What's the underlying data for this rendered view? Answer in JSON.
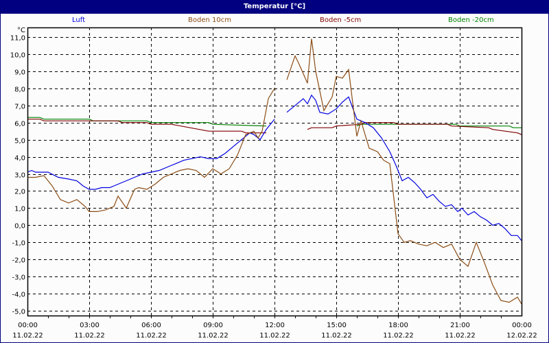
{
  "title": "Temperatur [°C]",
  "colors": {
    "titlebar": "#000080",
    "Luft": "#0000e0",
    "Boden 10cm": "#8b4c14",
    "Boden -5cm": "#800000",
    "Boden -20cm": "#008000"
  },
  "chart_data": {
    "type": "line",
    "title": "Temperatur [°C]",
    "ylabel": "°C",
    "xlabel": "",
    "ylim": [
      -5.0,
      11.0
    ],
    "grid": true,
    "legend_position": "top",
    "yticks": [
      "11,0",
      "10,0",
      "9,0",
      "8,0",
      "7,0",
      "6,0",
      "5,0",
      "4,0",
      "3,0",
      "2,0",
      "1,0",
      "0,0",
      "-1,0",
      "-2,0",
      "-3,0",
      "-4,0",
      "-5,0"
    ],
    "xticks": [
      {
        "time": "00:00",
        "date": "11.02.22"
      },
      {
        "time": "03:00",
        "date": "11.02.22"
      },
      {
        "time": "06:00",
        "date": "11.02.22"
      },
      {
        "time": "09:00",
        "date": "11.02.22"
      },
      {
        "time": "12:00",
        "date": "11.02.22"
      },
      {
        "time": "15:00",
        "date": "11.02.22"
      },
      {
        "time": "18:00",
        "date": "11.02.22"
      },
      {
        "time": "21:00",
        "date": "11.02.22"
      },
      {
        "time": "00:00",
        "date": "12.02.22"
      }
    ],
    "series": [
      {
        "name": "Luft",
        "x_hours": [
          0,
          0.2,
          0.4,
          0.6,
          1.0,
          1.5,
          2.0,
          2.4,
          2.7,
          3.0,
          3.3,
          3.6,
          4.0,
          4.4,
          4.8,
          5.2,
          5.6,
          6.0,
          6.4,
          6.8,
          7.2,
          7.6,
          8.0,
          8.4,
          8.8,
          9.2,
          9.6,
          10.0,
          10.4,
          10.8,
          11.0,
          11.3,
          11.6,
          12.0,
          12.2,
          12.6,
          13.0,
          13.4,
          13.6,
          13.8,
          14.0,
          14.2,
          14.6,
          15.0,
          15.3,
          15.6,
          16.0,
          16.4,
          16.8,
          17.2,
          17.6,
          17.9,
          18.2,
          18.5,
          18.8,
          19.1,
          19.4,
          19.7,
          20.0,
          20.3,
          20.6,
          20.9,
          21.1,
          21.4,
          21.7,
          22.0,
          22.3,
          22.6,
          22.9,
          23.2,
          23.5,
          23.8,
          24.0
        ],
        "values": [
          3.1,
          3.2,
          3.1,
          3.1,
          3.1,
          2.8,
          2.7,
          2.6,
          2.3,
          2.1,
          2.1,
          2.2,
          2.2,
          2.4,
          2.6,
          2.8,
          3.0,
          3.1,
          3.2,
          3.4,
          3.6,
          3.8,
          3.9,
          4.0,
          3.9,
          3.9,
          4.2,
          4.6,
          5.0,
          5.4,
          5.3,
          5.0,
          5.6,
          6.2,
          null,
          6.6,
          7.0,
          7.4,
          7.1,
          7.6,
          7.3,
          6.6,
          6.5,
          6.8,
          7.2,
          7.5,
          6.2,
          6.0,
          5.7,
          5.1,
          4.3,
          3.5,
          2.6,
          2.8,
          2.5,
          2.1,
          1.6,
          1.8,
          1.4,
          1.1,
          1.2,
          0.8,
          1.0,
          0.6,
          0.8,
          0.5,
          0.3,
          0.0,
          0.1,
          -0.2,
          -0.6,
          -0.6,
          -0.9
        ]
      },
      {
        "name": "Boden 10cm",
        "x_hours": [
          0,
          0.4,
          0.8,
          1.2,
          1.6,
          2.0,
          2.4,
          2.8,
          3.0,
          3.4,
          3.8,
          4.2,
          4.4,
          4.8,
          5.2,
          5.4,
          5.8,
          6.2,
          6.6,
          7.0,
          7.4,
          7.8,
          8.2,
          8.6,
          9.0,
          9.4,
          9.8,
          10.2,
          10.6,
          11.0,
          11.2,
          11.4,
          11.7,
          12.0,
          12.2,
          12.6,
          13.0,
          13.2,
          13.6,
          13.8,
          14.0,
          14.4,
          14.8,
          15.0,
          15.3,
          15.6,
          16.0,
          16.2,
          16.6,
          17.0,
          17.3,
          17.6,
          18.0,
          18.3,
          18.6,
          19.0,
          19.4,
          19.8,
          20.2,
          20.6,
          21.0,
          21.4,
          21.8,
          22.2,
          22.6,
          23.0,
          23.4,
          23.8,
          24.0
        ],
        "values": [
          2.8,
          2.8,
          2.9,
          2.3,
          1.5,
          1.3,
          1.5,
          1.1,
          0.8,
          0.8,
          0.9,
          1.1,
          1.7,
          1.0,
          2.1,
          2.2,
          2.1,
          2.4,
          2.8,
          3.0,
          3.2,
          3.3,
          3.2,
          2.8,
          3.3,
          3.0,
          3.3,
          4.1,
          5.3,
          5.5,
          5.1,
          5.5,
          7.4,
          8.0,
          null,
          8.5,
          9.9,
          9.4,
          8.3,
          10.9,
          9.0,
          6.7,
          7.5,
          8.7,
          8.6,
          9.1,
          5.2,
          6.1,
          4.5,
          4.3,
          3.8,
          3.6,
          -0.5,
          -1.0,
          -0.9,
          -1.1,
          -1.2,
          -1.0,
          -1.3,
          -1.1,
          -2.0,
          -2.4,
          -1.0,
          -2.2,
          -3.5,
          -4.4,
          -4.5,
          -4.2,
          -4.6
        ]
      },
      {
        "name": "Boden -5cm",
        "x_hours": [
          0,
          0.6,
          0.8,
          2.0,
          4.4,
          4.6,
          5.8,
          6.0,
          7.0,
          8.8,
          9.0,
          10.4,
          10.6,
          11.6,
          12.2,
          13.6,
          13.8,
          14.8,
          15.0,
          16.2,
          16.4,
          17.8,
          18.0,
          20.4,
          20.6,
          22.4,
          22.6,
          23.8,
          24.0
        ],
        "values": [
          6.2,
          6.2,
          6.1,
          6.1,
          6.1,
          6.0,
          6.0,
          5.9,
          5.9,
          5.5,
          5.5,
          5.5,
          5.4,
          5.4,
          null,
          5.6,
          5.7,
          5.7,
          5.8,
          5.9,
          6.0,
          6.0,
          5.9,
          5.9,
          5.8,
          5.7,
          5.6,
          5.4,
          5.3
        ]
      },
      {
        "name": "Boden -20cm",
        "x_hours": [
          0,
          0.6,
          0.8,
          3.0,
          3.2,
          5.8,
          6.0,
          8.8,
          9.0,
          11.6,
          12.2,
          16.0,
          16.2,
          20.8,
          21.0,
          23.4,
          23.6,
          24.0
        ],
        "values": [
          6.3,
          6.3,
          6.2,
          6.2,
          6.1,
          6.1,
          6.0,
          6.0,
          5.9,
          5.8,
          null,
          5.8,
          5.9,
          5.9,
          5.8,
          5.8,
          5.7,
          5.7
        ]
      }
    ]
  }
}
